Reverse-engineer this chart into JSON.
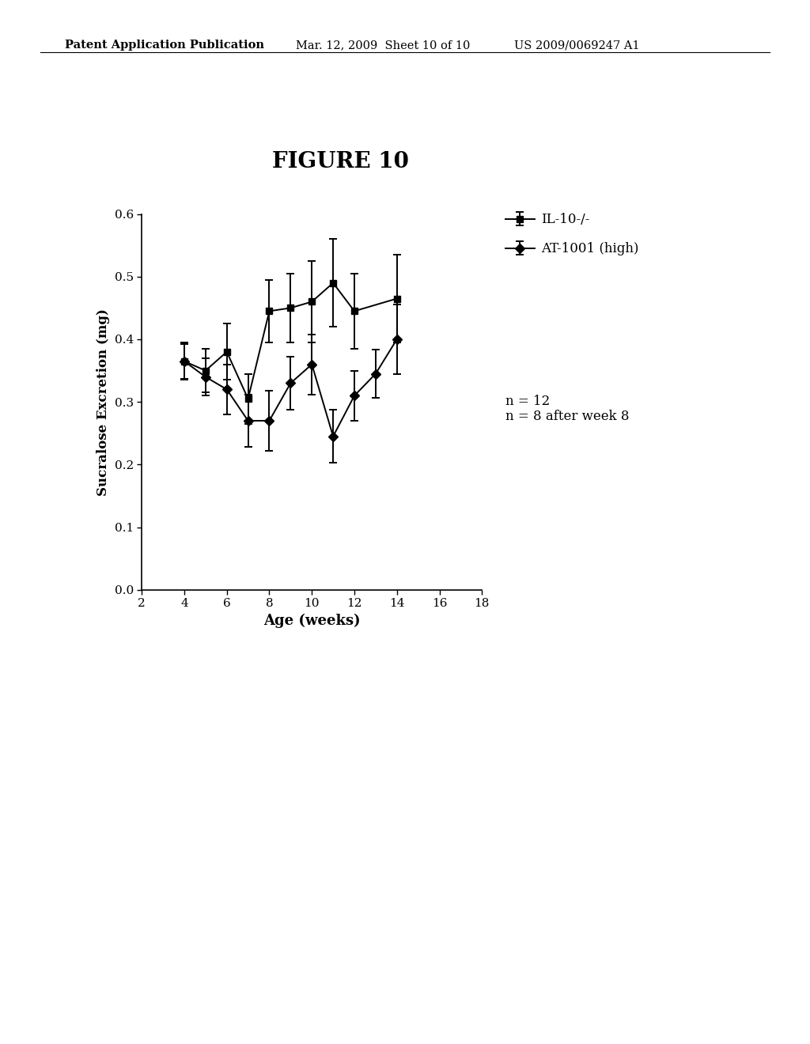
{
  "title": "FIGURE 10",
  "xlabel": "Age (weeks)",
  "ylabel": "Sucralose Excretion (mg)",
  "header_left": "Patent Application Publication",
  "header_mid": "Mar. 12, 2009  Sheet 10 of 10",
  "header_right": "US 2009/0069247 A1",
  "il10_x": [
    4,
    5,
    6,
    7,
    8,
    9,
    10,
    11,
    12,
    14
  ],
  "il10_y": [
    0.365,
    0.35,
    0.38,
    0.305,
    0.445,
    0.45,
    0.46,
    0.49,
    0.445,
    0.465
  ],
  "il10_yerr_low": [
    0.03,
    0.035,
    0.045,
    0.04,
    0.05,
    0.055,
    0.065,
    0.07,
    0.06,
    0.07
  ],
  "il10_yerr_high": [
    0.03,
    0.035,
    0.045,
    0.04,
    0.05,
    0.055,
    0.065,
    0.07,
    0.06,
    0.07
  ],
  "at1001_x": [
    4,
    5,
    6,
    7,
    8,
    9,
    10,
    11,
    12,
    13,
    14
  ],
  "at1001_y": [
    0.365,
    0.34,
    0.32,
    0.27,
    0.27,
    0.33,
    0.36,
    0.245,
    0.31,
    0.345,
    0.4
  ],
  "at1001_yerr_low": [
    0.028,
    0.03,
    0.04,
    0.042,
    0.048,
    0.042,
    0.048,
    0.042,
    0.04,
    0.038,
    0.055
  ],
  "at1001_yerr_high": [
    0.028,
    0.03,
    0.04,
    0.042,
    0.048,
    0.042,
    0.048,
    0.042,
    0.04,
    0.038,
    0.055
  ],
  "legend_label_1": "IL-10-/-",
  "legend_label_2": "AT-1001 (high)",
  "annotation": "n = 12\nn = 8 after week 8",
  "xlim": [
    2,
    18
  ],
  "ylim": [
    0.0,
    0.6
  ],
  "xticks": [
    2,
    4,
    6,
    8,
    10,
    12,
    14,
    16,
    18
  ],
  "yticks": [
    0.0,
    0.1,
    0.2,
    0.3,
    0.4,
    0.5,
    0.6
  ],
  "color": "#000000",
  "bg_color": "#ffffff"
}
